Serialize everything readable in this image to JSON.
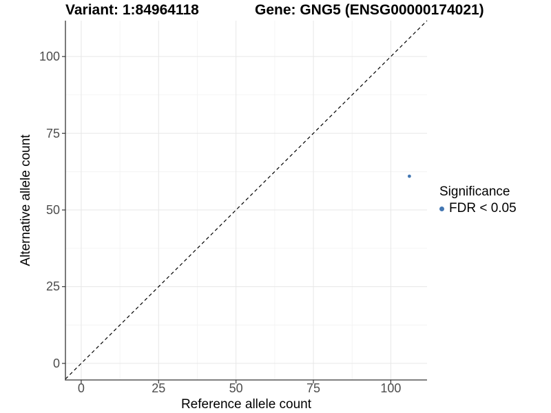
{
  "titles": {
    "variant": "Variant: 1:84964118",
    "gene": "Gene: GNG5 (ENSG00000174021)"
  },
  "axes": {
    "x": {
      "label": "Reference allele count",
      "tick_labels": [
        "0",
        "25",
        "50",
        "75",
        "100"
      ]
    },
    "y": {
      "label": "Alternative allele count",
      "tick_labels": [
        "0",
        "25",
        "50",
        "75",
        "100"
      ]
    }
  },
  "legend": {
    "title": "Significance",
    "items": [
      {
        "label": "FDR < 0.05",
        "color": "#4377b2"
      }
    ]
  },
  "colors": {
    "point": "#4377b2",
    "grid_major": "#e7e7e7",
    "grid_minor": "#f1f1f1",
    "axis_line": "#333333",
    "tick_label": "#4d4d4d",
    "reference_line": "#000000"
  },
  "chart_data": {
    "type": "scatter",
    "title": "Variant: 1:84964118   Gene: GNG5 (ENSG00000174021)",
    "xlabel": "Reference allele count",
    "ylabel": "Alternative allele count",
    "xlim": [
      -5.1,
      111.7
    ],
    "ylim": [
      -5.4,
      111.7
    ],
    "x_ticks": [
      0,
      25,
      50,
      75,
      100
    ],
    "y_ticks": [
      0,
      25,
      50,
      75,
      100
    ],
    "x_minor_ticks": [
      12.5,
      37.5,
      62.5,
      87.5
    ],
    "y_minor_ticks": [
      12.5,
      37.5,
      62.5,
      87.5
    ],
    "grid": "major and minor, light gray on white",
    "legend_position": "right",
    "series": [
      {
        "name": "FDR < 0.05",
        "color": "#4377b2",
        "points": [
          {
            "x": 106,
            "y": 61
          }
        ]
      }
    ],
    "reference_line": {
      "type": "identity y=x",
      "style": "dashed",
      "color": "#000000"
    }
  }
}
